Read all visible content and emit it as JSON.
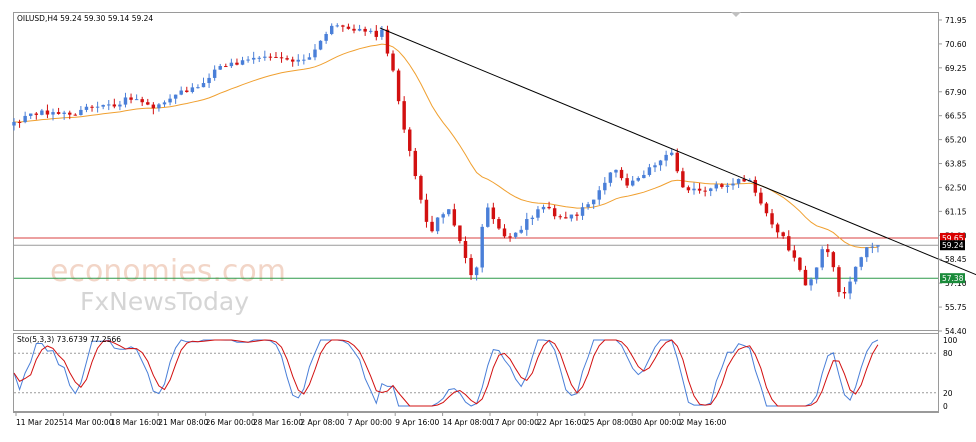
{
  "chart_data": {
    "type": "candlestick",
    "symbol_header": "OILUSD,H4  59.24 59.30 59.14 59.24",
    "y_ticks": [
      "71.95",
      "70.60",
      "69.25",
      "67.90",
      "66.55",
      "65.20",
      "63.85",
      "62.50",
      "61.15",
      "59.80",
      "58.45",
      "57.10",
      "55.75",
      "54.40"
    ],
    "x_ticks": [
      "11 Mar 2025",
      "14 Mar 00:00",
      "18 Mar 16:00",
      "21 Mar 08:00",
      "26 Mar 00:00",
      "28 Mar 16:00",
      "2 Apr 08:00",
      "7 Apr 00:00",
      "9 Apr 16:00",
      "14 Apr 08:00",
      "17 Apr 00:00",
      "22 Apr 16:00",
      "25 Apr 08:00",
      "30 Apr 00:00",
      "2 May 16:00"
    ],
    "ylim": [
      54.4,
      72.4
    ],
    "price_labels": [
      {
        "text": "59.65",
        "value": 59.65,
        "color": "#d90000"
      },
      {
        "text": "59.24",
        "value": 59.24,
        "color": "#000000"
      },
      {
        "text": "57.38",
        "value": 57.38,
        "color": "#1a8a3a"
      }
    ],
    "horizontal_lines": [
      {
        "value": 59.65,
        "color": "#d94040"
      },
      {
        "value": 59.24,
        "color": "#9a9a9a"
      },
      {
        "value": 57.38,
        "color": "#2e9a4a"
      }
    ],
    "trendline": {
      "start": [
        0.396,
        71.5
      ],
      "end": [
        1.068,
        57.0
      ],
      "color": "#000000"
    },
    "moving_average_color": "#f0a030",
    "up_color": "#4a7fd8",
    "down_color": "#d21010",
    "price_path": [
      [
        0.0,
        66.2
      ],
      [
        0.03,
        66.8
      ],
      [
        0.055,
        66.6
      ],
      [
        0.08,
        66.9
      ],
      [
        0.11,
        67.2
      ],
      [
        0.13,
        67.7
      ],
      [
        0.15,
        66.9
      ],
      [
        0.17,
        67.6
      ],
      [
        0.195,
        68.1
      ],
      [
        0.225,
        69.4
      ],
      [
        0.255,
        69.6
      ],
      [
        0.28,
        69.9
      ],
      [
        0.305,
        69.5
      ],
      [
        0.325,
        70.2
      ],
      [
        0.34,
        71.4
      ],
      [
        0.355,
        71.6
      ],
      [
        0.37,
        71.3
      ],
      [
        0.384,
        71.4
      ],
      [
        0.394,
        70.9
      ],
      [
        0.398,
        71.6
      ],
      [
        0.402,
        70.4
      ],
      [
        0.408,
        69.6
      ],
      [
        0.418,
        66.8
      ],
      [
        0.43,
        64.0
      ],
      [
        0.442,
        61.5
      ],
      [
        0.45,
        59.8
      ],
      [
        0.46,
        60.9
      ],
      [
        0.47,
        61.3
      ],
      [
        0.48,
        59.8
      ],
      [
        0.488,
        58.5
      ],
      [
        0.496,
        57.2
      ],
      [
        0.502,
        58.0
      ],
      [
        0.51,
        61.9
      ],
      [
        0.52,
        60.6
      ],
      [
        0.532,
        59.5
      ],
      [
        0.545,
        59.9
      ],
      [
        0.56,
        60.9
      ],
      [
        0.575,
        61.4
      ],
      [
        0.59,
        60.8
      ],
      [
        0.61,
        61.0
      ],
      [
        0.63,
        62.0
      ],
      [
        0.65,
        63.6
      ],
      [
        0.665,
        62.5
      ],
      [
        0.68,
        63.3
      ],
      [
        0.7,
        64.2
      ],
      [
        0.712,
        64.6
      ],
      [
        0.722,
        62.5
      ],
      [
        0.735,
        62.3
      ],
      [
        0.75,
        62.4
      ],
      [
        0.77,
        62.6
      ],
      [
        0.785,
        62.9
      ],
      [
        0.795,
        63.0
      ],
      [
        0.805,
        61.8
      ],
      [
        0.82,
        60.5
      ],
      [
        0.835,
        59.5
      ],
      [
        0.848,
        58.0
      ],
      [
        0.858,
        56.9
      ],
      [
        0.866,
        57.8
      ],
      [
        0.875,
        59.0
      ],
      [
        0.883,
        58.8
      ],
      [
        0.89,
        57.0
      ],
      [
        0.897,
        56.3
      ],
      [
        0.905,
        57.2
      ],
      [
        0.915,
        58.6
      ],
      [
        0.925,
        59.3
      ],
      [
        0.935,
        59.24
      ]
    ],
    "stochastic": {
      "label": "Sto(5,3,3) 73.6739 77.2566",
      "y_ticks": [
        "100",
        "80",
        "20",
        "0"
      ],
      "levels": [
        80,
        20
      ],
      "main_color": "#4a7fd8",
      "signal_color": "#d21010"
    }
  }
}
